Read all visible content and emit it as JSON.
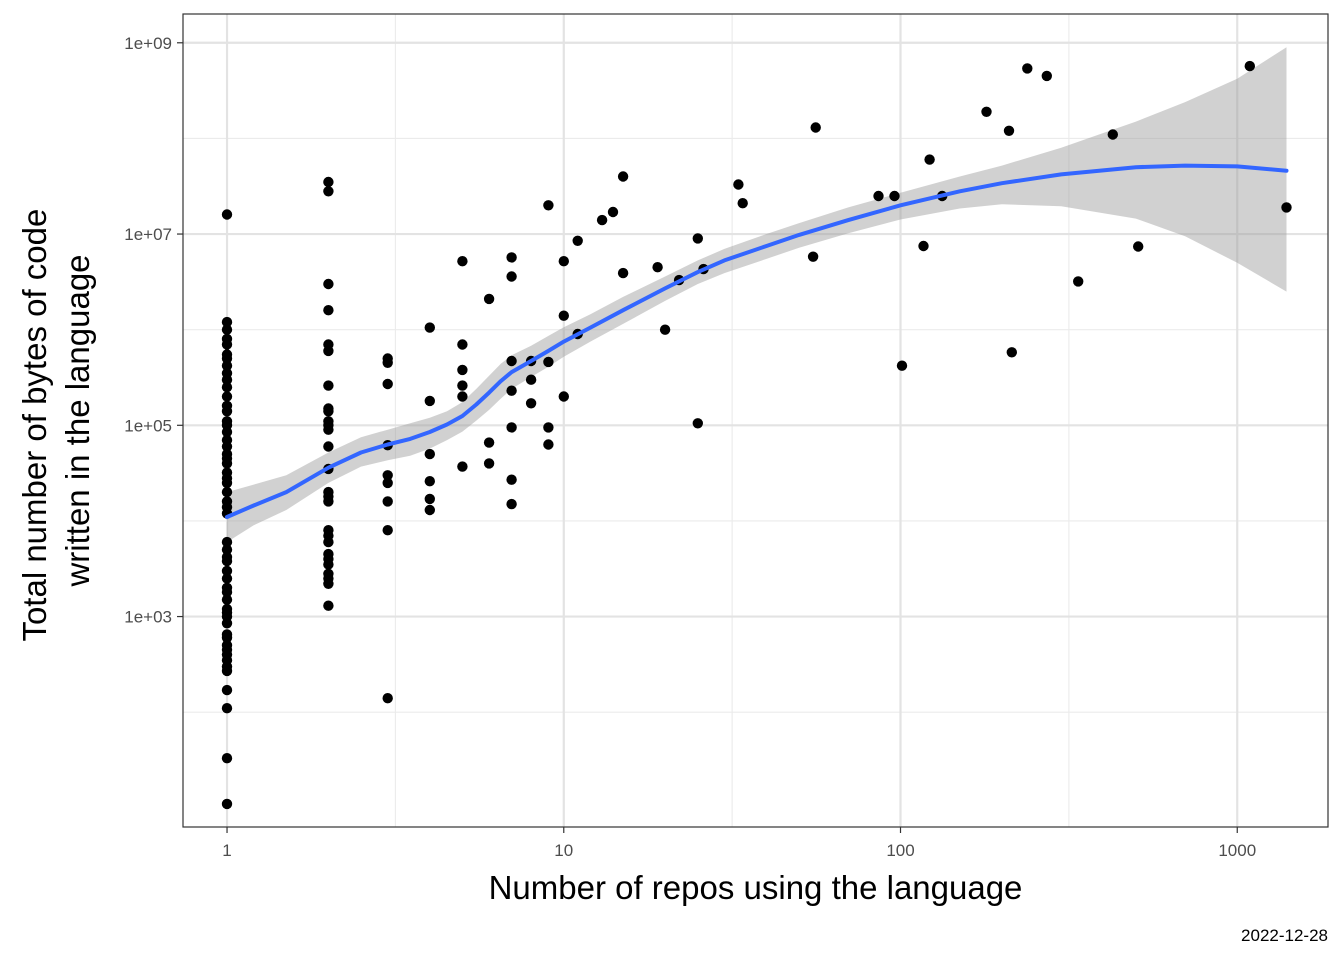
{
  "chart_data": {
    "type": "scatter",
    "title": "",
    "xlabel": "Number of repos using the language",
    "ylabel_lines": [
      "Total number of bytes of code",
      "written in the language"
    ],
    "caption": "2022-12-28",
    "x_scale": "log10",
    "y_scale": "log10",
    "xlim": [
      0.74,
      1860
    ],
    "ylim": [
      6.3,
      2000000000.0
    ],
    "x_ticks": [
      1,
      10,
      100,
      1000
    ],
    "x_tick_labels": [
      "1",
      "10",
      "100",
      "1000"
    ],
    "y_ticks": [
      1000,
      100000,
      10000000,
      1000000000
    ],
    "y_tick_labels": [
      "1e+03",
      "1e+05",
      "1e+07",
      "1e+09"
    ],
    "grid": true,
    "point_color": "#000000",
    "smooth_color": "#3366ff",
    "band_color": "#999999",
    "points": [
      [
        1,
        16000000
      ],
      [
        1,
        1200000
      ],
      [
        1,
        1000000
      ],
      [
        1,
        800000
      ],
      [
        1,
        700000
      ],
      [
        1,
        550000
      ],
      [
        1,
        500000
      ],
      [
        1,
        420000
      ],
      [
        1,
        350000
      ],
      [
        1,
        300000
      ],
      [
        1,
        250000
      ],
      [
        1,
        200000
      ],
      [
        1,
        160000
      ],
      [
        1,
        140000
      ],
      [
        1,
        110000
      ],
      [
        1,
        100000
      ],
      [
        1,
        85000
      ],
      [
        1,
        70000
      ],
      [
        1,
        60000
      ],
      [
        1,
        50000
      ],
      [
        1,
        45000
      ],
      [
        1,
        40000
      ],
      [
        1,
        32000
      ],
      [
        1,
        28000
      ],
      [
        1,
        25000
      ],
      [
        1,
        20000
      ],
      [
        1,
        16000
      ],
      [
        1,
        14000
      ],
      [
        1,
        12000
      ],
      [
        1,
        6000
      ],
      [
        1,
        5000
      ],
      [
        1,
        4200
      ],
      [
        1,
        3800
      ],
      [
        1,
        3000
      ],
      [
        1,
        2500
      ],
      [
        1,
        2000
      ],
      [
        1,
        1800
      ],
      [
        1,
        1500
      ],
      [
        1,
        1200
      ],
      [
        1,
        1100
      ],
      [
        1,
        1000
      ],
      [
        1,
        850
      ],
      [
        1,
        650
      ],
      [
        1,
        600
      ],
      [
        1,
        500
      ],
      [
        1,
        450
      ],
      [
        1,
        400
      ],
      [
        1,
        350
      ],
      [
        1,
        300
      ],
      [
        1,
        270
      ],
      [
        1,
        170
      ],
      [
        1,
        110
      ],
      [
        1,
        33
      ],
      [
        1,
        11
      ],
      [
        2,
        35000000
      ],
      [
        2,
        28000000
      ],
      [
        2,
        3000000
      ],
      [
        2,
        1600000
      ],
      [
        2,
        700000
      ],
      [
        2,
        600000
      ],
      [
        2,
        260000
      ],
      [
        2,
        150000
      ],
      [
        2,
        140000
      ],
      [
        2,
        110000
      ],
      [
        2,
        100000
      ],
      [
        2,
        90000
      ],
      [
        2,
        60000
      ],
      [
        2,
        35000
      ],
      [
        2,
        20000
      ],
      [
        2,
        18000
      ],
      [
        2,
        16000
      ],
      [
        2,
        8000
      ],
      [
        2,
        7000
      ],
      [
        2,
        6000
      ],
      [
        2,
        4500
      ],
      [
        2,
        4000
      ],
      [
        2,
        3500
      ],
      [
        2,
        2800
      ],
      [
        2,
        2500
      ],
      [
        2,
        2200
      ],
      [
        2,
        1300
      ],
      [
        3,
        500000
      ],
      [
        3,
        450000
      ],
      [
        3,
        270000
      ],
      [
        3,
        62000
      ],
      [
        3,
        30000
      ],
      [
        3,
        25000
      ],
      [
        3,
        16000
      ],
      [
        3,
        8000
      ],
      [
        3,
        140
      ],
      [
        4,
        1050000
      ],
      [
        4,
        180000
      ],
      [
        4,
        50000
      ],
      [
        4,
        26000
      ],
      [
        4,
        17000
      ],
      [
        4,
        13000
      ],
      [
        5,
        5200000
      ],
      [
        5,
        700000
      ],
      [
        5,
        380000
      ],
      [
        5,
        260000
      ],
      [
        5,
        200000
      ],
      [
        5,
        37000
      ],
      [
        6,
        2100000
      ],
      [
        6,
        66000
      ],
      [
        6,
        40000
      ],
      [
        7,
        5700000
      ],
      [
        7,
        3600000
      ],
      [
        7,
        470000
      ],
      [
        7,
        230000
      ],
      [
        7,
        95000
      ],
      [
        7,
        27000
      ],
      [
        7,
        15000
      ],
      [
        8,
        470000
      ],
      [
        8,
        300000
      ],
      [
        8,
        170000
      ],
      [
        9,
        20000000
      ],
      [
        9,
        460000
      ],
      [
        9,
        95000
      ],
      [
        9,
        63000
      ],
      [
        10,
        5200000
      ],
      [
        10,
        1400000
      ],
      [
        10,
        200000
      ],
      [
        11,
        8500000
      ],
      [
        11,
        900000
      ],
      [
        13,
        14000000
      ],
      [
        14,
        17000000
      ],
      [
        15,
        40000000
      ],
      [
        15,
        3900000
      ],
      [
        19,
        4500000
      ],
      [
        20,
        1000000
      ],
      [
        22,
        3300000
      ],
      [
        25,
        9000000
      ],
      [
        25,
        105000
      ],
      [
        26,
        4300000
      ],
      [
        33,
        33000000
      ],
      [
        34,
        21000000
      ],
      [
        55,
        5800000
      ],
      [
        56,
        130000000
      ],
      [
        86,
        25000000
      ],
      [
        96,
        25000000
      ],
      [
        101,
        420000
      ],
      [
        117,
        7500000
      ],
      [
        122,
        60000000
      ],
      [
        133,
        25000000
      ],
      [
        180,
        190000000
      ],
      [
        210,
        120000000
      ],
      [
        214,
        580000
      ],
      [
        238,
        540000000
      ],
      [
        272,
        450000000
      ],
      [
        337,
        3200000
      ],
      [
        427,
        110000000
      ],
      [
        508,
        7400000
      ],
      [
        1090,
        570000000
      ],
      [
        1400,
        19000000
      ]
    ],
    "smooth_line": [
      [
        1,
        11000
      ],
      [
        1.2,
        14500
      ],
      [
        1.5,
        20000
      ],
      [
        2,
        36000
      ],
      [
        2.5,
        52000
      ],
      [
        3,
        63000
      ],
      [
        3.5,
        72000
      ],
      [
        4,
        85000
      ],
      [
        4.5,
        102000
      ],
      [
        5,
        125000
      ],
      [
        5.5,
        165000
      ],
      [
        6,
        220000
      ],
      [
        6.5,
        290000
      ],
      [
        7,
        360000
      ],
      [
        8,
        470000
      ],
      [
        9,
        600000
      ],
      [
        10,
        750000
      ],
      [
        12,
        1050000
      ],
      [
        15,
        1600000
      ],
      [
        20,
        2700000
      ],
      [
        25,
        4000000
      ],
      [
        30,
        5300000
      ],
      [
        40,
        7500000
      ],
      [
        50,
        9800000
      ],
      [
        70,
        14000000
      ],
      [
        100,
        20000000
      ],
      [
        150,
        28000000
      ],
      [
        200,
        34000000
      ],
      [
        300,
        42000000
      ],
      [
        500,
        50000000
      ],
      [
        700,
        52000000
      ],
      [
        1000,
        51000000
      ],
      [
        1400,
        46000000
      ]
    ],
    "band_upper": [
      [
        1,
        20000
      ],
      [
        1.2,
        24000
      ],
      [
        1.5,
        30000
      ],
      [
        2,
        52000
      ],
      [
        2.5,
        75000
      ],
      [
        3,
        90000
      ],
      [
        3.5,
        105000
      ],
      [
        4,
        120000
      ],
      [
        4.5,
        140000
      ],
      [
        5,
        175000
      ],
      [
        5.5,
        240000
      ],
      [
        6,
        330000
      ],
      [
        6.5,
        440000
      ],
      [
        7,
        540000
      ],
      [
        8,
        680000
      ],
      [
        9,
        860000
      ],
      [
        10,
        1060000
      ],
      [
        12,
        1450000
      ],
      [
        15,
        2200000
      ],
      [
        20,
        3600000
      ],
      [
        25,
        5300000
      ],
      [
        30,
        7000000
      ],
      [
        40,
        10000000
      ],
      [
        50,
        13000000
      ],
      [
        70,
        19000000
      ],
      [
        100,
        27000000
      ],
      [
        150,
        40000000
      ],
      [
        200,
        52000000
      ],
      [
        300,
        80000000
      ],
      [
        500,
        150000000
      ],
      [
        700,
        240000000
      ],
      [
        1000,
        420000000
      ],
      [
        1400,
        900000000
      ]
    ],
    "band_lower": [
      [
        1,
        6000
      ],
      [
        1.2,
        9000
      ],
      [
        1.5,
        13000
      ],
      [
        2,
        25000
      ],
      [
        2.5,
        37000
      ],
      [
        3,
        43000
      ],
      [
        3.5,
        48000
      ],
      [
        4,
        57000
      ],
      [
        4.5,
        70000
      ],
      [
        5,
        86000
      ],
      [
        5.5,
        112000
      ],
      [
        6,
        145000
      ],
      [
        6.5,
        190000
      ],
      [
        7,
        240000
      ],
      [
        8,
        320000
      ],
      [
        9,
        410000
      ],
      [
        10,
        520000
      ],
      [
        12,
        750000
      ],
      [
        15,
        1150000
      ],
      [
        20,
        2000000
      ],
      [
        25,
        3000000
      ],
      [
        30,
        3900000
      ],
      [
        40,
        5500000
      ],
      [
        50,
        7200000
      ],
      [
        70,
        10200000
      ],
      [
        100,
        14200000
      ],
      [
        150,
        18500000
      ],
      [
        200,
        20500000
      ],
      [
        300,
        19500000
      ],
      [
        500,
        14500000
      ],
      [
        700,
        9500000
      ],
      [
        1000,
        5000000
      ],
      [
        1400,
        2500000
      ]
    ]
  }
}
